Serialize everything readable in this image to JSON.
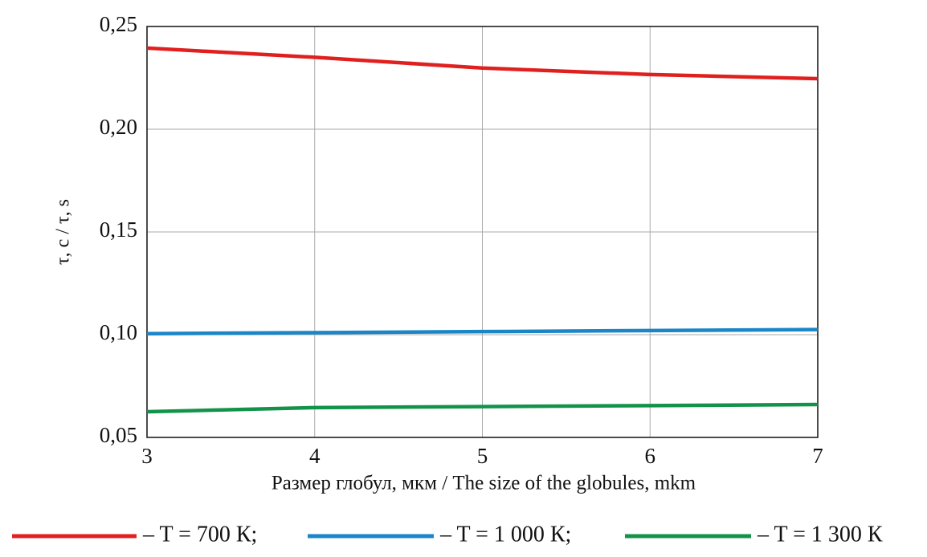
{
  "chart_data": {
    "type": "line",
    "x_label": "Размер глобул, мкм / The size of the globules, mkm",
    "y_label": "τ, с / τ, s",
    "x": [
      3,
      4,
      5,
      6,
      7
    ],
    "series": [
      {
        "name": "– T = 700 К;",
        "color": "#e0201f",
        "values": [
          0.2395,
          0.235,
          0.2298,
          0.2266,
          0.2246
        ]
      },
      {
        "name": "– T = 1 000 К;",
        "color": "#1a86c8",
        "values": [
          0.1005,
          0.101,
          0.1015,
          0.102,
          0.1025
        ]
      },
      {
        "name": "– T = 1 300 К",
        "color": "#13934a",
        "values": [
          0.0625,
          0.0645,
          0.065,
          0.0655,
          0.066
        ]
      }
    ],
    "xlim": [
      3,
      7
    ],
    "xticks": [
      3,
      4,
      5,
      6,
      7
    ],
    "ylim": [
      0.05,
      0.25
    ],
    "yticks": [
      {
        "value": 0.05,
        "label": "0,05"
      },
      {
        "value": 0.1,
        "label": "0,10"
      },
      {
        "value": 0.15,
        "label": "0,15"
      },
      {
        "value": 0.2,
        "label": "0,20"
      },
      {
        "value": 0.25,
        "label": "0,25"
      }
    ],
    "grid": true
  }
}
